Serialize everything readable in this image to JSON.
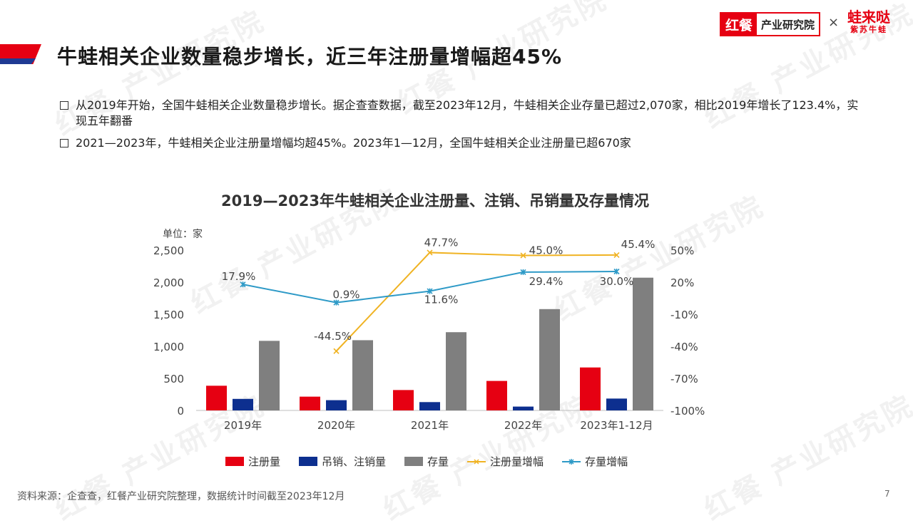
{
  "header": {
    "title": "牛蛙相关企业数量稳步增长，近三年注册量增幅超45%",
    "logo_left_red": "红餐",
    "logo_left_text": "产业研究院",
    "logo_x": "×",
    "logo_right_main": "蛙来哒",
    "logo_right_sub": "紫苏牛蛙"
  },
  "watermark": "红餐 产业研究院",
  "bullets": [
    "从2019年开始，全国牛蛙相关企业数量稳步增长。据企查查数据，截至2023年12月，牛蛙相关企业存量已超过2,070家，相比2019年增长了123.4%，实现五年翻番",
    "2021—2023年，牛蛙相关企业注册量增幅均超45%。2023年1—12月，全国牛蛙相关企业注册量已超670家"
  ],
  "chart_data": {
    "type": "bar",
    "title": "2019—2023年牛蛙相关企业注册量、注销、吊销量及存量情况",
    "unit_label": "单位：家",
    "categories": [
      "2019年",
      "2020年",
      "2021年",
      "2022年",
      "2023年1-12月"
    ],
    "y_left": {
      "min": 0,
      "max": 2500,
      "ticks": [
        "0",
        "500",
        "1,000",
        "1,500",
        "2,000",
        "2,500"
      ]
    },
    "y_right": {
      "min": -100,
      "max": 50,
      "ticks": [
        "-100%",
        "-70%",
        "-40%",
        "-10%",
        "20%",
        "50%"
      ]
    },
    "series": [
      {
        "name": "注册量",
        "kind": "bar",
        "color": "#e60012",
        "values": [
          385,
          215,
          318,
          460,
          670
        ]
      },
      {
        "name": "吊销、注销量",
        "kind": "bar",
        "color": "#0d2f8f",
        "values": [
          180,
          160,
          130,
          60,
          185
        ]
      },
      {
        "name": "存量",
        "kind": "bar",
        "color": "#7f7f7f",
        "values": [
          1085,
          1095,
          1220,
          1580,
          2070
        ]
      },
      {
        "name": "注册量增幅",
        "kind": "line",
        "axis": "right",
        "color": "#f0b323",
        "values": [
          null,
          -44.5,
          47.7,
          45.0,
          45.4
        ],
        "labels": [
          "",
          "-44.5%",
          "47.7%",
          "45.0%",
          "45.4%"
        ]
      },
      {
        "name": "存量增幅",
        "kind": "line",
        "axis": "right",
        "color": "#2e9ac7",
        "values": [
          17.9,
          0.9,
          11.6,
          29.4,
          30.0
        ],
        "labels": [
          "17.9%",
          "0.9%",
          "11.6%",
          "29.4%",
          "30.0%"
        ]
      }
    ],
    "legend_position": "bottom",
    "grid": false
  },
  "footer": {
    "source": "资料来源：企查查，红餐产业研究院整理，数据统计时间截至2023年12月",
    "page": "7"
  }
}
